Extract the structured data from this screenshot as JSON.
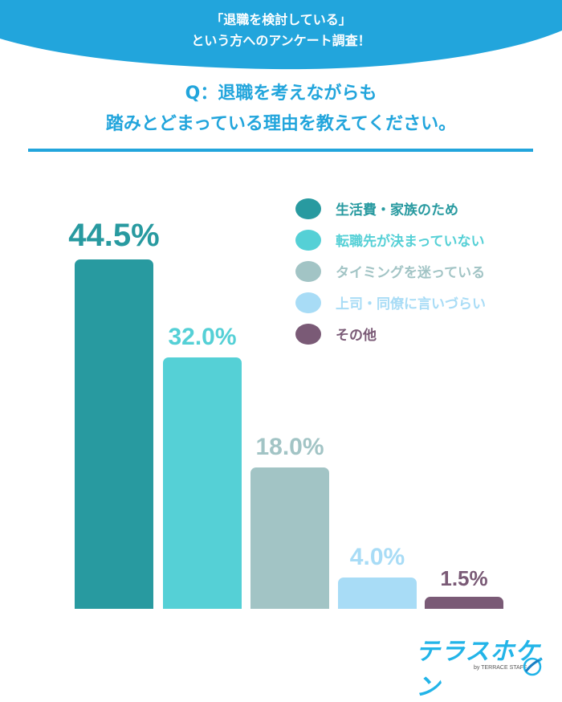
{
  "banner": {
    "line1": "「退職を検討している」",
    "line2": "という方へのアンケート調査！",
    "color": "#22a5dc"
  },
  "question": {
    "line1": "Q：退職を考えながらも",
    "line2": "踏みとどまっている理由を教えてください。",
    "color": "#22a5dc"
  },
  "legend": [
    {
      "label": "生活費・家族のため",
      "color": "#289aa0"
    },
    {
      "label": "転職先が決まっていない",
      "color": "#55d0d6"
    },
    {
      "label": "タイミングを迷っている",
      "color": "#a2c4c5"
    },
    {
      "label": "上司・同僚に言いづらい",
      "color": "#a8dcf6"
    },
    {
      "label": "その他",
      "color": "#7a5a76"
    }
  ],
  "bars": [
    {
      "label": "44.5%",
      "value": 44.5,
      "color": "#289aa0"
    },
    {
      "label": "32.0%",
      "value": 32.0,
      "color": "#55d0d6"
    },
    {
      "label": "18.0%",
      "value": 18.0,
      "color": "#a2c4c5"
    },
    {
      "label": "4.0%",
      "value": 4.0,
      "color": "#a8dcf6"
    },
    {
      "label": "1.5%",
      "value": 1.5,
      "color": "#7a5a76"
    }
  ],
  "logo": {
    "name": "テラスホケン",
    "sub": "by TERRACE STAFF"
  },
  "chart_data": {
    "type": "bar",
    "title": "Q：退職を考えながらも踏みとどまっている理由を教えてください。",
    "subtitle": "「退職を検討している」という方へのアンケート調査！",
    "categories": [
      "生活費・家族のため",
      "転職先が決まっていない",
      "タイミングを迷っている",
      "上司・同僚に言いづらい",
      "その他"
    ],
    "values": [
      44.5,
      32.0,
      18.0,
      4.0,
      1.5
    ],
    "unit": "%",
    "xlabel": "",
    "ylabel": "",
    "grid": false,
    "legend_position": "upper right"
  }
}
